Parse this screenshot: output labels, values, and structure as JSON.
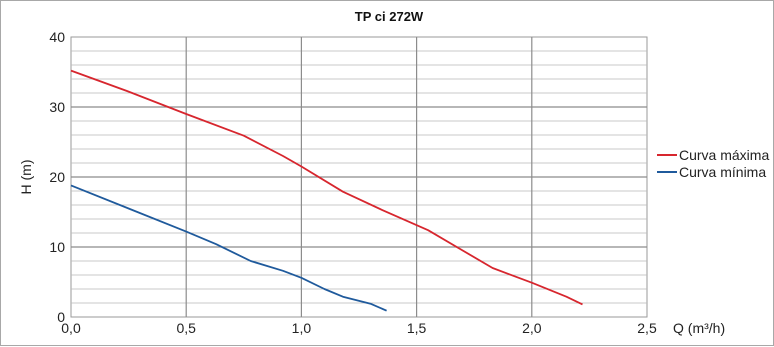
{
  "chart_data": {
    "type": "line",
    "title": "TP ci 272W",
    "xlabel": "Q (m³/h)",
    "ylabel": "H (m)",
    "xlim": [
      0,
      2.5
    ],
    "ylim": [
      0,
      40
    ],
    "x_ticks": [
      "0,0",
      "0,5",
      "1,0",
      "1,5",
      "2,0",
      "2,5"
    ],
    "y_ticks": [
      "0",
      "10",
      "20",
      "30",
      "40"
    ],
    "grid": true,
    "legend_position": "right",
    "series": [
      {
        "name": "Curva máxima",
        "color": "#d7262e",
        "points": [
          [
            0,
            35.2
          ],
          [
            0.25,
            32.2
          ],
          [
            0.5,
            29.0
          ],
          [
            0.75,
            25.9
          ],
          [
            0.92,
            23.0
          ],
          [
            1.0,
            21.5
          ],
          [
            1.18,
            17.9
          ],
          [
            1.35,
            15.3
          ],
          [
            1.55,
            12.4
          ],
          [
            1.7,
            9.5
          ],
          [
            1.83,
            7.0
          ],
          [
            2.0,
            4.9
          ],
          [
            2.15,
            2.9
          ],
          [
            2.22,
            1.8
          ]
        ]
      },
      {
        "name": "Curva mínima",
        "color": "#1f5a9c",
        "points": [
          [
            0,
            18.8
          ],
          [
            0.25,
            15.5
          ],
          [
            0.5,
            12.2
          ],
          [
            0.63,
            10.4
          ],
          [
            0.78,
            8.0
          ],
          [
            0.92,
            6.6
          ],
          [
            1.0,
            5.6
          ],
          [
            1.1,
            4.0
          ],
          [
            1.18,
            2.9
          ],
          [
            1.3,
            1.9
          ],
          [
            1.37,
            0.9
          ]
        ]
      }
    ]
  }
}
